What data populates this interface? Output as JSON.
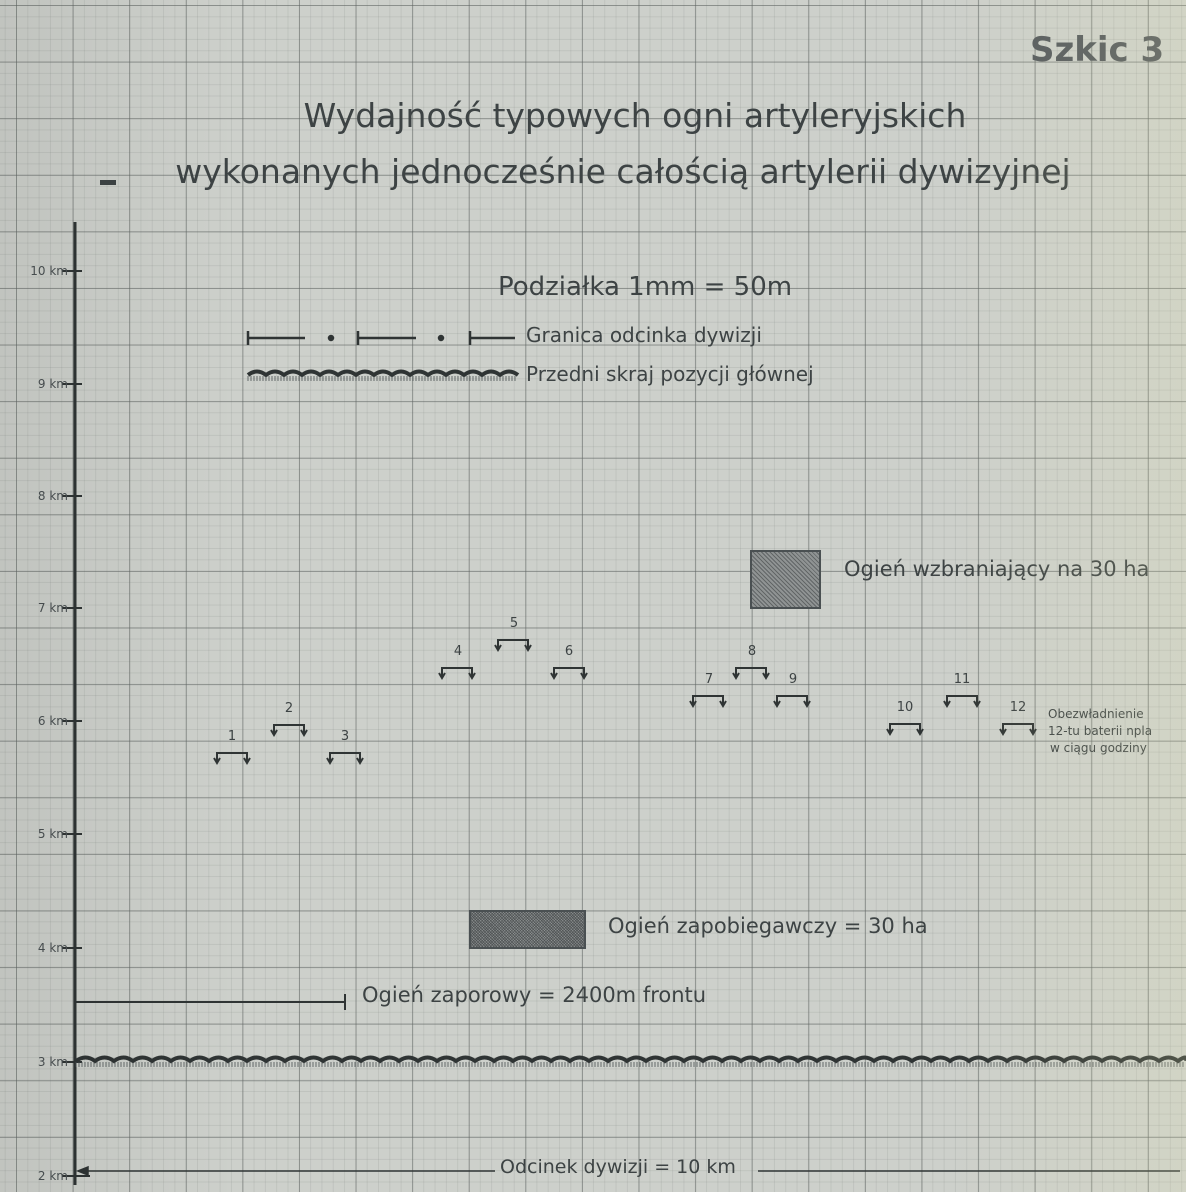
{
  "sketch_label": "Szkic 3",
  "title_line1": "Wydajność typowych ogni artyleryjskich",
  "title_line2": "wykonanych jednocześnie całością artylerii dywizyjnej",
  "scale_label": "Podziałka 1mm = 50m",
  "legend": {
    "division_border": "Granica odcinka dywizji",
    "front_edge": "Przedni skraj pozycji głównej",
    "prohibiting_fire": "Ogień wzbraniający na 30 ha",
    "preventive_fire": "Ogień zapobiegawczy = 30 ha",
    "barrage_fire": "Ogień zaporowy = 2400m frontu"
  },
  "note_lines": [
    "Obezwładnienie",
    "12-tu baterii npla",
    "w ciągu godziny"
  ],
  "division_sector": "Odcinek dywizji = 10 km",
  "y_axis": [
    "10 km",
    "9 km",
    "8 km",
    "7 km",
    "6 km",
    "5 km",
    "4 km",
    "3 km",
    "2 km"
  ],
  "batteries": [
    "1",
    "2",
    "3",
    "4",
    "5",
    "6",
    "7",
    "8",
    "9",
    "10",
    "11",
    "12"
  ],
  "colors": {
    "paper": "#cdd0cb",
    "ink": "#3d4344",
    "grid": "#5f6462"
  }
}
